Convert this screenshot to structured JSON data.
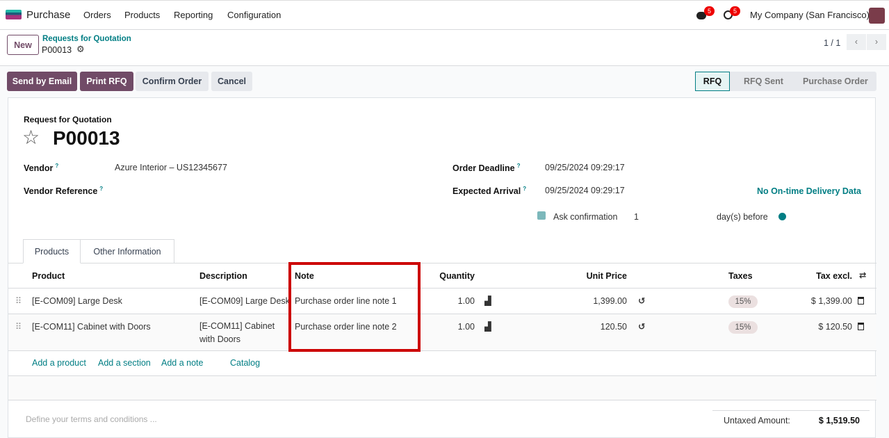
{
  "navbar": {
    "app": "Purchase",
    "menu": [
      "Orders",
      "Products",
      "Reporting",
      "Configuration"
    ],
    "messages_count": "5",
    "activities_count": "5",
    "company": "My Company (San Francisco)"
  },
  "control": {
    "new_label": "New",
    "breadcrumb": "Requests for Quotation",
    "record": "P00013",
    "pager": "1 / 1"
  },
  "actions": {
    "send_email": "Send by Email",
    "print_rfq": "Print RFQ",
    "confirm": "Confirm Order",
    "cancel": "Cancel"
  },
  "status": {
    "stages": [
      "RFQ",
      "RFQ Sent",
      "Purchase Order"
    ],
    "active": "RFQ"
  },
  "form": {
    "subtitle": "Request for Quotation",
    "name": "P00013",
    "vendor_label": "Vendor",
    "vendor": "Azure Interior – US12345677",
    "vendor_ref_label": "Vendor Reference",
    "deadline_label": "Order Deadline",
    "deadline": "09/25/2024 09:29:17",
    "arrival_label": "Expected Arrival",
    "arrival": "09/25/2024 09:29:17",
    "delivery_data": "No On-time Delivery Data",
    "ask_confirmation": "Ask confirmation",
    "ask_days": "1",
    "days_before": "day(s) before",
    "help_mark": "?"
  },
  "tabs": [
    "Products",
    "Other Information"
  ],
  "table": {
    "headers": [
      "Product",
      "Description",
      "Note",
      "Quantity",
      "Unit Price",
      "Taxes",
      "Tax excl."
    ],
    "rows": [
      {
        "product": "[E-COM09] Large Desk",
        "description": "[E-COM09] Large Desk",
        "note": "Purchase order line note 1",
        "quantity": "1.00",
        "unit_price": "1,399.00",
        "taxes": "15%",
        "subtotal": "$ 1,399.00"
      },
      {
        "product": "[E-COM11] Cabinet with Doors",
        "description": "[E-COM11] Cabinet with Doors",
        "note": "Purchase order line note 2",
        "quantity": "1.00",
        "unit_price": "120.50",
        "taxes": "15%",
        "subtotal": "$ 120.50"
      }
    ],
    "add_product": "Add a product",
    "add_section": "Add a section",
    "add_note": "Add a note",
    "catalog": "Catalog"
  },
  "footer": {
    "terms_placeholder": "Define your terms and conditions ...",
    "untaxed_label": "Untaxed Amount:",
    "untaxed": "$ 1,519.50"
  },
  "colors": {
    "primary": "#714b67",
    "accent": "#017e84",
    "highlight": "#cc0000"
  }
}
